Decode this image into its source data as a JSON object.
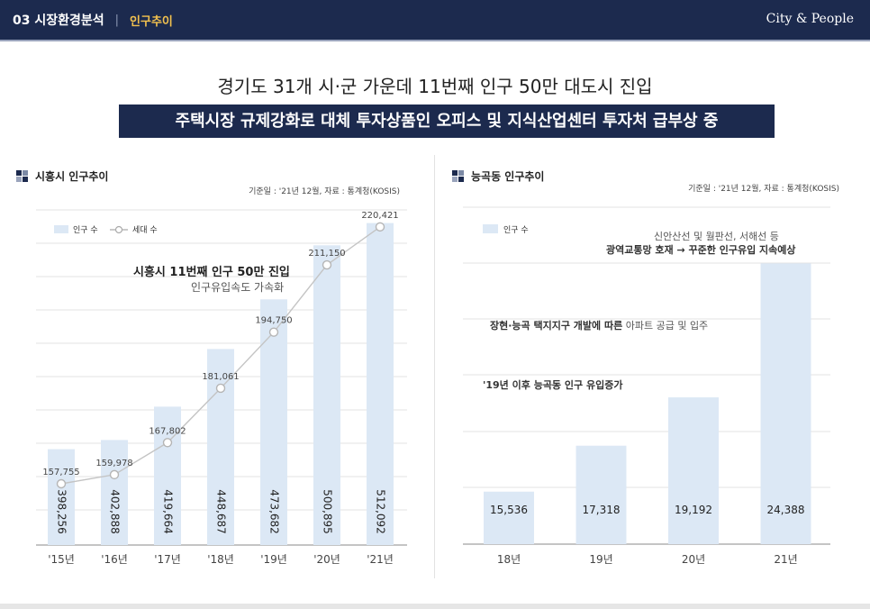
{
  "header": {
    "section": "03 시장환경분석",
    "subsection": "인구추이",
    "logo": "City & People",
    "accent": "#1c2a4e",
    "sub_color": "#f2c14e"
  },
  "headline": "경기도 31개 시·군 가운데 11번째 인구 50만 대도시 진입",
  "banner": "주택시장 규제강화로 대체 투자상품인 오피스 및 지식산업센터 투자처 급부상 중",
  "left_panel": {
    "title": "시흥시 인구추이",
    "source": "기준일 : '21년 12월, 자료 : 통계청(KOSIS)",
    "annotation_bold": "시흥시 11번째 인구 50만 진입",
    "annotation_normal": "인구유입속도 가속화"
  },
  "right_panel": {
    "title": "능곡동 인구추이",
    "source": "기준일 : '21년 12월, 자료 : 통계청(KOSIS)",
    "ann1_normal": "신안산선 및 월판선, 서해선 등",
    "ann1_bold": "광역교통망 호재  → 꾸준한 인구유입 지속예상",
    "ann2_bold": "장현·능곡 택지지구 개발에 따른",
    "ann2_normal": " 아파트 공급 및 입주",
    "ann3_bold": "'19년 이후 능곡동 인구 유입증가"
  },
  "chart_data": [
    {
      "type": "bar",
      "title": "시흥시 인구추이",
      "categories": [
        "'15년",
        "'16년",
        "'17년",
        "'18년",
        "'19년",
        "'20년",
        "'21년"
      ],
      "series": [
        {
          "name": "인구 수",
          "type": "bar",
          "color": "#dce8f5",
          "values": [
            398256,
            402888,
            419664,
            448687,
            473682,
            500895,
            512092
          ],
          "labels": [
            "398,256",
            "402,888",
            "419,664",
            "448,687",
            "473,682",
            "500,895",
            "512,092"
          ]
        },
        {
          "name": "세대 수",
          "type": "line",
          "color": "#c0c0c0",
          "values": [
            157755,
            159978,
            167802,
            181061,
            194750,
            211150,
            220421
          ],
          "labels": [
            "157,755",
            "159,978",
            "167,802",
            "181,061",
            "194,750",
            "211,150",
            "220,421"
          ]
        }
      ],
      "legend": "top-left",
      "grid": true
    },
    {
      "type": "bar",
      "title": "능곡동 인구추이",
      "categories": [
        "18년",
        "19년",
        "20년",
        "21년"
      ],
      "series": [
        {
          "name": "인구 수",
          "type": "bar",
          "color": "#dce8f5",
          "values": [
            15536,
            17318,
            19192,
            24388
          ],
          "labels": [
            "15,536",
            "17,318",
            "19,192",
            "24,388"
          ]
        }
      ],
      "legend": "top-left",
      "grid": true
    }
  ]
}
